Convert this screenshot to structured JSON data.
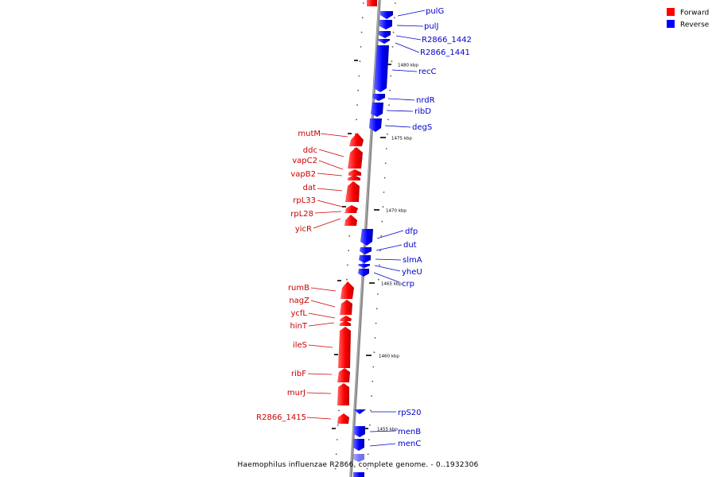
{
  "legend": {
    "forward": {
      "label": "Forward",
      "color": "#ff0000"
    },
    "reverse": {
      "label": "Reverse",
      "color": "#0000ff"
    }
  },
  "caption": "Haemophilus influenzae R2866, complete genome. - 0..1932306",
  "tick_labels": [
    "1480 kbp",
    "1475 kbp",
    "1470 kbp",
    "1465 kbp",
    "1460 kbp",
    "1455 kbp"
  ],
  "forward_genes": [
    "mutM",
    "ddc",
    "vapC2",
    "vapB2",
    "dat",
    "rpL33",
    "rpL28",
    "yicR",
    "rumB",
    "nagZ",
    "ycfL",
    "hinT",
    "ileS",
    "ribF",
    "murJ",
    "R2866_1415"
  ],
  "reverse_genes": [
    "pulG",
    "pulJ",
    "R2866_1442",
    "R2866_1441",
    "recC",
    "nrdR",
    "ribD",
    "degS",
    "dfp",
    "dut",
    "slmA",
    "yheU",
    "crp",
    "rpS20",
    "menB",
    "menC"
  ]
}
